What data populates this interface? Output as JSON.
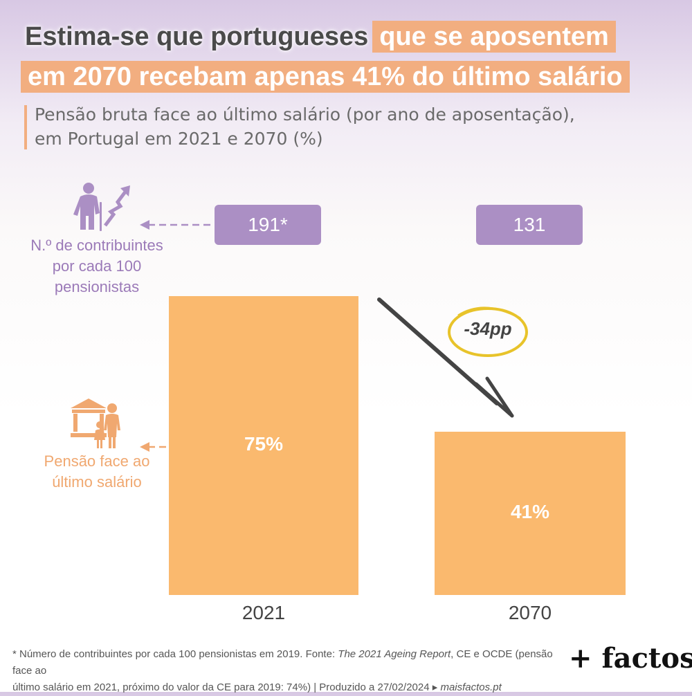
{
  "title": {
    "part1": "Estima-se que portugueses",
    "part2": "que se aposentem",
    "part3": "em 2070 recebam apenas 41% do último salário"
  },
  "subtitle": {
    "line1": "Pensão bruta face ao último salário (por ano de aposentação),",
    "line2": "em Portugal em 2021 e 2070 (%)"
  },
  "legend": {
    "contributors": [
      "N.º de contribuintes",
      "por cada 100",
      "pensionistas"
    ],
    "pension": [
      "Pensão face ao",
      "último salário"
    ]
  },
  "icons": {
    "contributors": "elderly-person-rising-arrow-icon",
    "pension": "bank-euro-elderly-couple-icon"
  },
  "colors": {
    "bar": "#fab96e",
    "contrib_box": "#ab8fc4",
    "highlight": "#f2ae80",
    "circle": "#e8c32a",
    "arrow": "#444444"
  },
  "chart_data": {
    "type": "bar",
    "categories": [
      "2021",
      "2070"
    ],
    "values": [
      75,
      41
    ],
    "value_labels": [
      "75%",
      "41%"
    ],
    "ylim": [
      0,
      75
    ],
    "contributors": {
      "labels": [
        "191*",
        "131"
      ],
      "values": [
        191,
        131
      ]
    },
    "annotation": "-34pp",
    "xlabel": "",
    "ylabel": ""
  },
  "footnote": {
    "text1": "* Número de contribuintes por cada 100 pensionistas em 2019. Fonte: ",
    "source_italic": "The 2021 Ageing Report",
    "text2": ", CE e OCDE (pensão face ao",
    "text3": "último salário em 2021, próximo do valor da CE para 2019: 74%) | Produzido a 27/02/2024 ▸ ",
    "site": "maisfactos.pt"
  },
  "logo": "+ factos"
}
